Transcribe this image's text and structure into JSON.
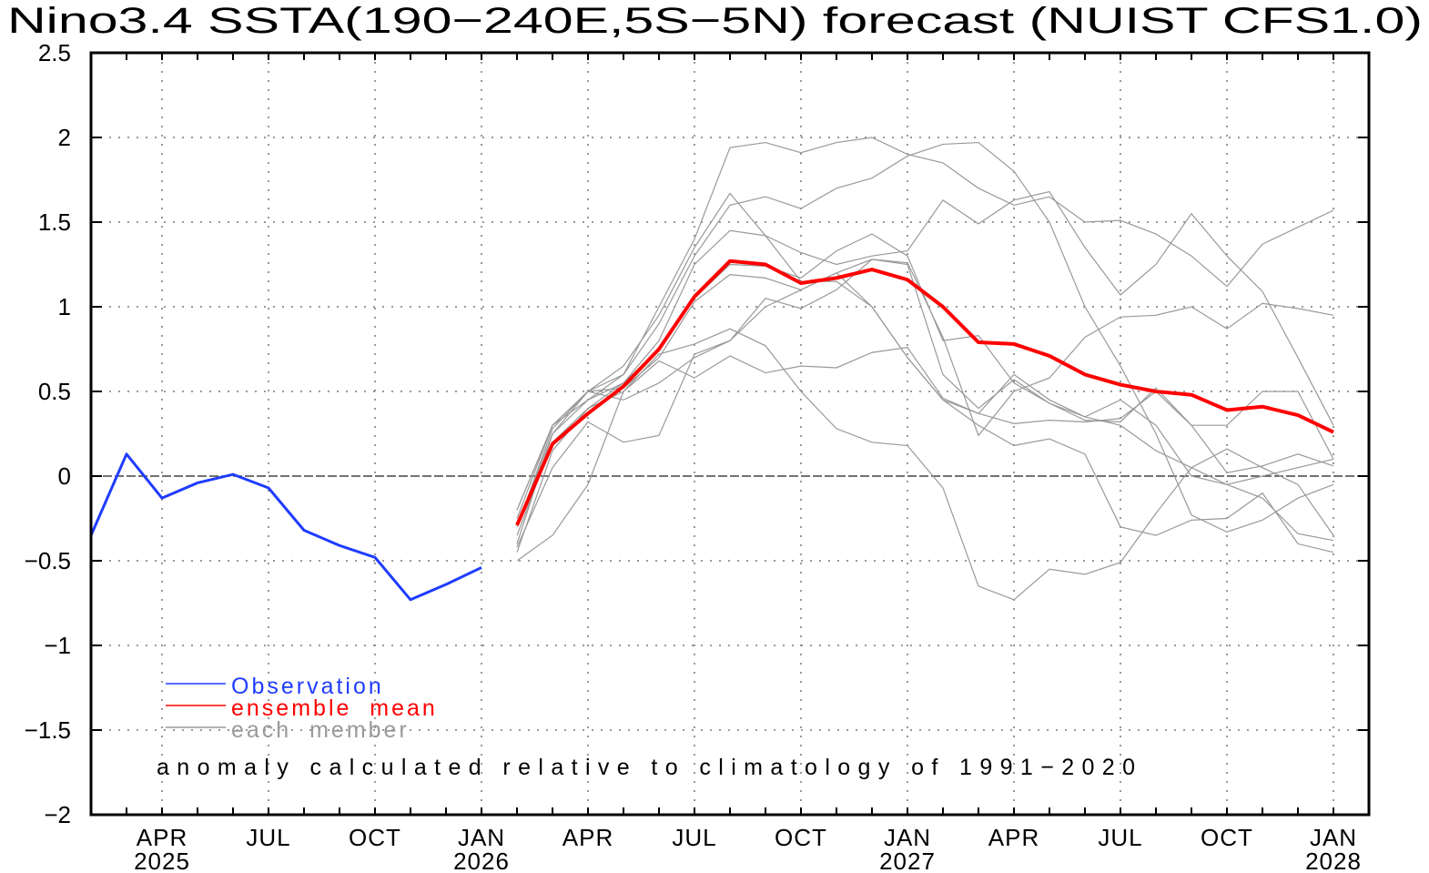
{
  "chart_data": {
    "type": "line",
    "title": "Nino3.4 SSTA(190−240E,5S−5N) forecast (NUIST CFS1.0)",
    "xlabel": "",
    "ylabel": "",
    "ylim": [
      -2,
      2.5
    ],
    "yticks": [
      2.5,
      2,
      1.5,
      1,
      0.5,
      0,
      -0.5,
      -1,
      -1.5,
      -2
    ],
    "ytick_labels": [
      "2.5",
      "2",
      "1.5",
      "1",
      "0.5",
      "0",
      "−0.5",
      "−1",
      "−1.5",
      "−2"
    ],
    "xrange": [
      "2025-02",
      "2028-02"
    ],
    "xticks": [
      {
        "month_index": 2,
        "label": "APR",
        "year": "2025"
      },
      {
        "month_index": 5,
        "label": "JUL",
        "year": ""
      },
      {
        "month_index": 8,
        "label": "OCT",
        "year": ""
      },
      {
        "month_index": 11,
        "label": "JAN",
        "year": "2026"
      },
      {
        "month_index": 14,
        "label": "APR",
        "year": ""
      },
      {
        "month_index": 17,
        "label": "JUL",
        "year": ""
      },
      {
        "month_index": 20,
        "label": "OCT",
        "year": ""
      },
      {
        "month_index": 23,
        "label": "JAN",
        "year": "2027"
      },
      {
        "month_index": 26,
        "label": "APR",
        "year": ""
      },
      {
        "month_index": 29,
        "label": "JUL",
        "year": ""
      },
      {
        "month_index": 32,
        "label": "OCT",
        "year": ""
      },
      {
        "month_index": 35,
        "label": "JAN",
        "year": "2028"
      }
    ],
    "grid": true,
    "legend_placement": "bottom-left",
    "legend": [
      {
        "name": "Observation",
        "color": "#1f3cff"
      },
      {
        "name": "ensemble  mean",
        "color": "#ff0000"
      },
      {
        "name": "each  member",
        "color": "#999999"
      }
    ],
    "annotation": "anomaly calculated relative to climatology of 1991−2020",
    "observation": {
      "start_month_index": 0,
      "values": [
        -0.35,
        0.13,
        -0.13,
        -0.04,
        0.01,
        -0.07,
        -0.32,
        -0.41,
        -0.48,
        -0.73,
        -0.64,
        -0.54
      ]
    },
    "ensemble_mean": {
      "start_month_index": 12,
      "values": [
        -0.29,
        0.19,
        0.37,
        0.53,
        0.75,
        1.06,
        1.27,
        1.25,
        1.14,
        1.17,
        1.22,
        1.16,
        1.0,
        0.79,
        0.78,
        0.71,
        0.6,
        0.54,
        0.5,
        0.48,
        0.39,
        0.41,
        0.36,
        0.26
      ]
    },
    "members": {
      "start_month_index": 12,
      "series": [
        [
          -0.2,
          0.3,
          0.5,
          0.6,
          1.0,
          1.4,
          1.94,
          1.97,
          1.91,
          1.97,
          2.0,
          1.9,
          1.85,
          1.7,
          1.6,
          1.65,
          1.5,
          1.51,
          1.43,
          1.3,
          1.12,
          1.37,
          1.47,
          1.57
        ],
        [
          -0.3,
          0.25,
          0.45,
          0.6,
          0.9,
          1.3,
          1.6,
          1.65,
          1.58,
          1.7,
          1.76,
          1.89,
          1.96,
          1.97,
          1.8,
          1.5,
          1.0,
          0.65,
          0.25,
          -0.23,
          -0.33,
          -0.26,
          -0.13,
          -0.05
        ],
        [
          -0.25,
          0.3,
          0.5,
          0.65,
          0.95,
          1.35,
          1.67,
          1.42,
          1.15,
          1.15,
          1.0,
          0.7,
          0.45,
          0.37,
          0.6,
          0.45,
          0.35,
          0.3,
          0.15,
          0.05,
          -0.05,
          -0.13,
          -0.34,
          -0.38
        ],
        [
          -0.35,
          0.2,
          0.4,
          0.55,
          0.8,
          1.25,
          1.45,
          1.42,
          1.32,
          1.25,
          1.3,
          1.33,
          1.63,
          1.49,
          1.63,
          1.68,
          1.35,
          1.07,
          1.25,
          1.55,
          1.3,
          1.09,
          0.7,
          0.3
        ],
        [
          -0.2,
          0.3,
          0.45,
          0.55,
          0.75,
          1.05,
          1.25,
          1.24,
          1.17,
          1.33,
          1.43,
          1.3,
          0.8,
          0.83,
          0.55,
          0.43,
          0.33,
          0.32,
          0.52,
          0.3,
          0.3,
          0.5,
          0.5,
          0.1
        ],
        [
          -0.4,
          0.25,
          0.5,
          0.52,
          0.7,
          1.03,
          1.19,
          1.17,
          1.1,
          1.2,
          1.28,
          1.26,
          0.82,
          0.24,
          0.5,
          0.58,
          0.82,
          0.94,
          0.95,
          1.0,
          0.87,
          1.02,
          0.99,
          0.95
        ],
        [
          -0.45,
          0.15,
          0.4,
          0.5,
          0.72,
          0.78,
          0.87,
          0.77,
          0.5,
          0.28,
          0.2,
          0.18,
          -0.07,
          -0.65,
          -0.73,
          -0.55,
          -0.58,
          -0.51,
          -0.22,
          0.05,
          0.16,
          0.05,
          -0.05,
          -0.35
        ],
        [
          -0.42,
          0.05,
          0.32,
          0.2,
          0.24,
          0.72,
          0.8,
          1.05,
          0.99,
          1.1,
          1.28,
          1.25,
          0.6,
          0.4,
          0.57,
          0.43,
          0.35,
          0.45,
          0.3,
          0.0,
          -0.05,
          0.0,
          0.05,
          0.1
        ],
        [
          -0.5,
          -0.35,
          -0.05,
          0.5,
          0.68,
          0.58,
          0.71,
          0.61,
          0.65,
          0.64,
          0.73,
          0.76,
          0.46,
          0.37,
          0.31,
          0.33,
          0.32,
          0.34,
          0.5,
          0.3,
          0.02,
          0.06,
          0.13,
          0.06
        ],
        [
          -0.3,
          0.28,
          0.5,
          0.45,
          0.55,
          0.7,
          0.8,
          1.0,
          1.1,
          1.2,
          1.0,
          0.7,
          0.45,
          0.3,
          0.18,
          0.22,
          0.13,
          -0.3,
          -0.35,
          -0.26,
          -0.25,
          -0.1,
          -0.4,
          -0.45
        ]
      ]
    },
    "colors": {
      "observation": "#1f3cff",
      "ensemble_mean": "#ff0000",
      "member": "#999999",
      "grid": "#777777"
    }
  }
}
